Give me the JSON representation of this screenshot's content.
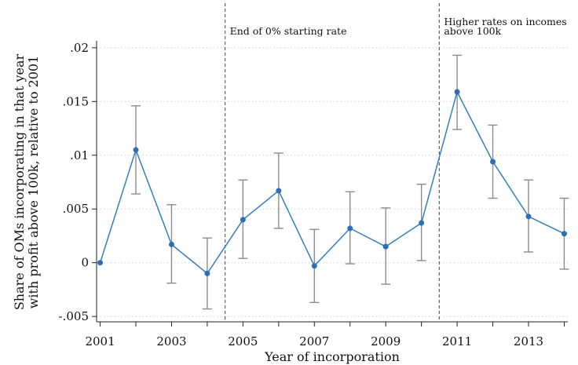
{
  "chart_data": {
    "type": "line",
    "xlabel": "Year of incorporation",
    "ylabel_lines": [
      "Share of OMs incorporating in that year",
      "with profit above 100k, relative to 2001"
    ],
    "xlim": [
      2000.9,
      2014.1
    ],
    "ylim": [
      -0.0055,
      0.0205
    ],
    "x_ticks": [
      2001,
      2003,
      2005,
      2007,
      2009,
      2011,
      2013
    ],
    "x_tick_labels": [
      "2001",
      "2003",
      "2005",
      "2007",
      "2009",
      "2011",
      "2013"
    ],
    "y_ticks": [
      -0.005,
      0,
      0.005,
      0.01,
      0.015,
      0.02
    ],
    "y_tick_labels": [
      "-.005",
      "0",
      ".005",
      ".01",
      ".015",
      ".02"
    ],
    "grid": true,
    "series": [
      {
        "x": [
          2001,
          2002,
          2003,
          2004,
          2005,
          2006,
          2007,
          2008,
          2009,
          2010,
          2011,
          2012,
          2013,
          2014
        ],
        "values": [
          0,
          0.0105,
          0.0017,
          -0.001,
          0.004,
          0.0067,
          -0.0003,
          0.0032,
          0.0015,
          0.0037,
          0.0159,
          0.0094,
          0.0043,
          0.0027
        ],
        "ci_low": [
          null,
          0.0064,
          -0.0019,
          -0.0043,
          0.0004,
          0.0032,
          -0.0037,
          -0.0001,
          -0.002,
          0.0002,
          0.0124,
          0.006,
          0.001,
          -0.0006
        ],
        "ci_high": [
          null,
          0.0146,
          0.0054,
          0.0023,
          0.0077,
          0.0102,
          0.0031,
          0.0066,
          0.0051,
          0.0073,
          0.0193,
          0.0128,
          0.0077,
          0.006
        ]
      }
    ],
    "vlines": [
      {
        "x": 2004.5,
        "label_lines": [
          "End of 0% starting rate"
        ]
      },
      {
        "x": 2010.5,
        "label_lines": [
          "Higher rates on incomes",
          "above 100k"
        ]
      }
    ],
    "colors": {
      "line": "#2f7fc8",
      "point": "#2a6fb8",
      "ci": "#8c8c8c",
      "grid": "#d0d0d0",
      "axis": "#222222",
      "vline": "#555555"
    }
  }
}
